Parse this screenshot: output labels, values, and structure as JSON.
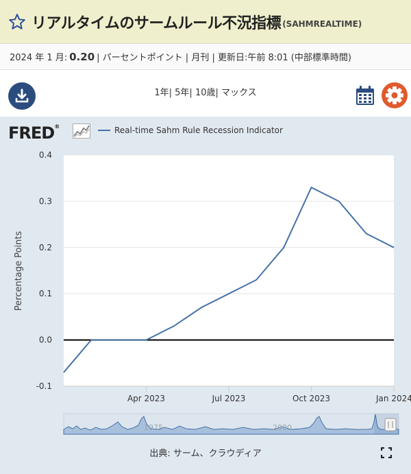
{
  "header": {
    "title": "リアルタイムのサームルール不況指標",
    "series_code": "(SAHMREALTIME)"
  },
  "meta": {
    "date_label": "2024 年 1 月:",
    "value": "0.20",
    "units": "| パーセントポイント | 月刊 | 更新日:午前 8:01 (中部標準時間)"
  },
  "controls": {
    "ranges": [
      "1年",
      "5年",
      "10歳",
      "マックス"
    ]
  },
  "colors": {
    "series": "#4572a7",
    "title_bg": "#efefcd",
    "chart_bg": "#e1e9f0",
    "download_btn": "#2b4c7e",
    "gear": "#e05a2b",
    "calendar": "#2b4c7e"
  },
  "icons": [
    "star-icon",
    "download-icon",
    "calendar-icon",
    "gear-icon",
    "fullscreen-icon"
  ],
  "brand": {
    "logo_text": "FRED",
    "logo_mark": "®"
  },
  "chart_data": {
    "type": "line",
    "legend": "Real-time Sahm Rule Recession Indicator",
    "ylabel": "Percentage Points",
    "xlabel": "",
    "ylim": [
      -0.1,
      0.4
    ],
    "yticks": [
      -0.1,
      0.0,
      0.1,
      0.2,
      0.3,
      0.4
    ],
    "ytick_labels": [
      "-0.1",
      "0.0",
      "0.1",
      "0.2",
      "0.3",
      "0.4"
    ],
    "x_start": "2023-01",
    "x_end": "2024-01",
    "xtick_labels": [
      {
        "label": "Apr 2023",
        "month": "2023-04"
      },
      {
        "label": "Jul 2023",
        "month": "2023-07"
      },
      {
        "label": "Oct 2023",
        "month": "2023-10"
      },
      {
        "label": "Jan 2024",
        "month": "2024-01"
      }
    ],
    "series": [
      {
        "name": "Real-time Sahm Rule Recession Indicator",
        "x": [
          "2023-01",
          "2023-02",
          "2023-03",
          "2023-04",
          "2023-05",
          "2023-06",
          "2023-07",
          "2023-08",
          "2023-09",
          "2023-10",
          "2023-11",
          "2023-12",
          "2024-01"
        ],
        "values": [
          -0.07,
          0.0,
          0.0,
          0.0,
          0.03,
          0.07,
          0.1,
          0.13,
          0.2,
          0.33,
          0.3,
          0.23,
          0.2
        ]
      }
    ],
    "zero_line": 0.0,
    "grid": "horizontal",
    "legend_position": "top-left",
    "navigator": {
      "labels": [
        "1975",
        "2000"
      ]
    }
  },
  "footer": {
    "source": "出典: サーム、クラウディア"
  }
}
